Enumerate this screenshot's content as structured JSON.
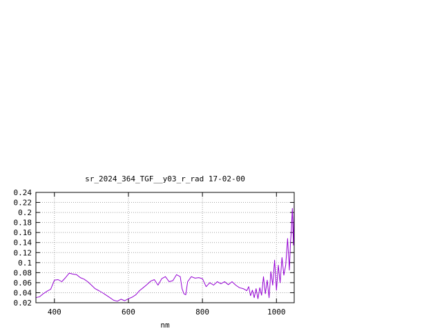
{
  "chart_data": {
    "type": "line",
    "title": "sr_2024_364_TGF__y03_r_rad 17-02-00",
    "xlabel": "nm",
    "ylabel": "",
    "xlim": [
      350,
      1048
    ],
    "ylim": [
      0.02,
      0.24
    ],
    "xticks": [
      400,
      600,
      800,
      1000
    ],
    "xtick_labels": [
      "400",
      "600",
      "800",
      "1000"
    ],
    "yticks": [
      0.02,
      0.04,
      0.06,
      0.08,
      0.1,
      0.12,
      0.14,
      0.16,
      0.18,
      0.2,
      0.22,
      0.24
    ],
    "ytick_labels": [
      "0.02",
      "0.04",
      "0.06",
      "0.08",
      "0.1",
      "0.12",
      "0.14",
      "0.16",
      "0.18",
      "0.2",
      "0.22",
      "0.24"
    ],
    "grid": true,
    "legend": "none",
    "line_color": "#9400d3",
    "series": [
      {
        "x": [
          350,
          360,
          370,
          380,
          390,
          400,
          410,
          420,
          430,
          440,
          450,
          460,
          470,
          480,
          490,
          500,
          510,
          520,
          530,
          540,
          550,
          560,
          570,
          580,
          590,
          600,
          610,
          620,
          630,
          640,
          650,
          660,
          670,
          680,
          690,
          700,
          710,
          720,
          730,
          740,
          745,
          750,
          755,
          760,
          770,
          780,
          790,
          800,
          810,
          820,
          830,
          840,
          850,
          860,
          870,
          880,
          890,
          900,
          910,
          920,
          925,
          930,
          935,
          940,
          945,
          950,
          955,
          960,
          965,
          970,
          975,
          980,
          985,
          990,
          995,
          1000,
          1005,
          1010,
          1015,
          1020,
          1025,
          1030,
          1035,
          1038,
          1040,
          1043,
          1046,
          1048
        ],
        "y": [
          0.03,
          0.032,
          0.038,
          0.043,
          0.047,
          0.065,
          0.066,
          0.062,
          0.07,
          0.079,
          0.077,
          0.076,
          0.07,
          0.067,
          0.062,
          0.055,
          0.048,
          0.044,
          0.04,
          0.035,
          0.03,
          0.025,
          0.023,
          0.027,
          0.024,
          0.028,
          0.031,
          0.036,
          0.044,
          0.05,
          0.056,
          0.063,
          0.066,
          0.055,
          0.068,
          0.072,
          0.062,
          0.064,
          0.076,
          0.072,
          0.048,
          0.038,
          0.036,
          0.062,
          0.072,
          0.069,
          0.07,
          0.068,
          0.052,
          0.06,
          0.055,
          0.062,
          0.058,
          0.062,
          0.056,
          0.062,
          0.055,
          0.05,
          0.048,
          0.044,
          0.052,
          0.034,
          0.045,
          0.03,
          0.048,
          0.028,
          0.05,
          0.035,
          0.072,
          0.038,
          0.065,
          0.03,
          0.082,
          0.055,
          0.105,
          0.045,
          0.095,
          0.06,
          0.11,
          0.075,
          0.095,
          0.148,
          0.085,
          0.14,
          0.16,
          0.208,
          0.135,
          0.22
        ]
      }
    ]
  }
}
